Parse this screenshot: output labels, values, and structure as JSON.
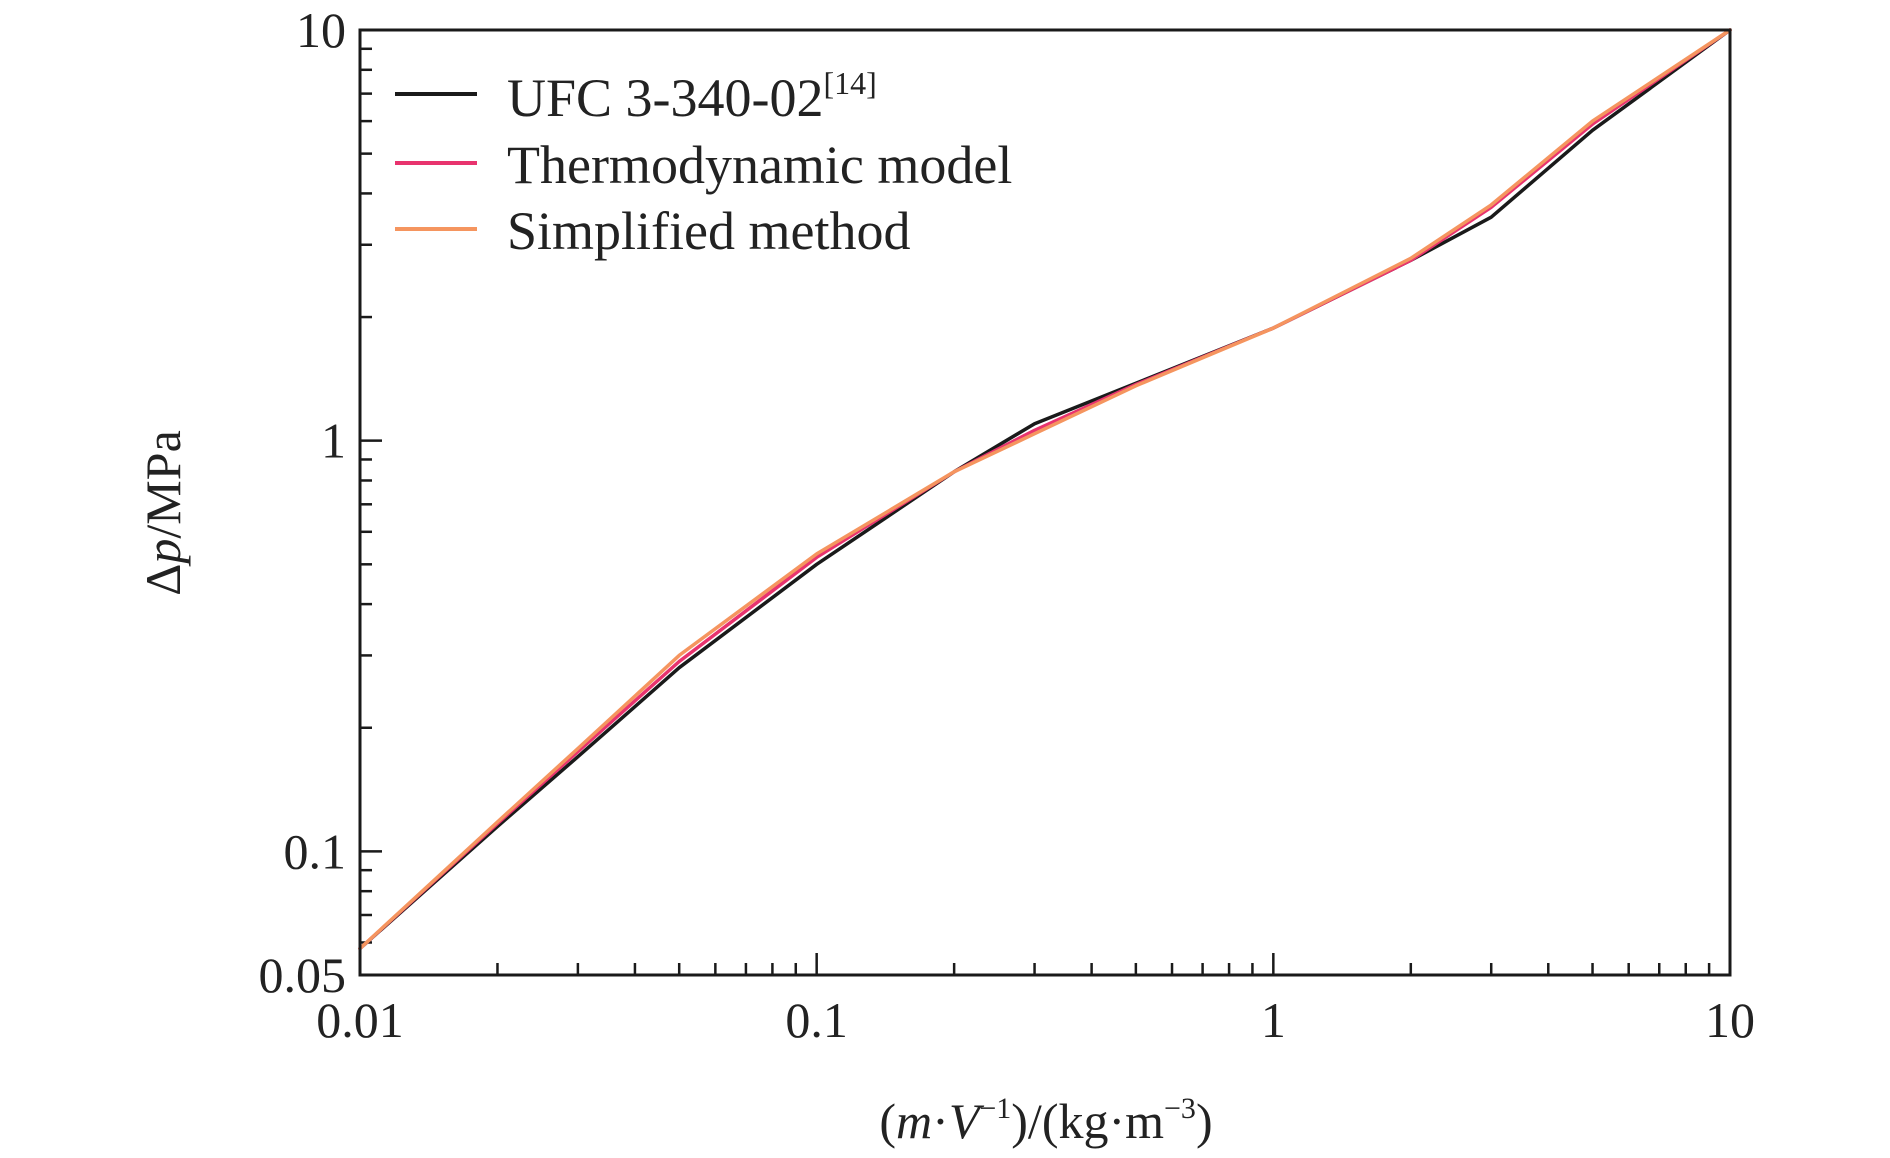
{
  "chart_data": {
    "type": "line",
    "title": "",
    "xlabel": {
      "paren_open": "(",
      "m": "m",
      "dot1": "·",
      "V": "V",
      "exp1": "−1",
      "mid": ")/(kg·m",
      "exp2": "−3",
      "paren_close": ")"
    },
    "ylabel": {
      "delta": "Δ",
      "p": "p",
      "unit": "/MPa"
    },
    "x_scale": "log",
    "y_scale": "log",
    "xlim": [
      0.01,
      10
    ],
    "ylim": [
      0.05,
      10
    ],
    "x_ticks": [
      {
        "value": 0.01,
        "label": "0.01"
      },
      {
        "value": 0.1,
        "label": "0.1"
      },
      {
        "value": 1,
        "label": "1"
      },
      {
        "value": 10,
        "label": "10"
      }
    ],
    "y_ticks": [
      {
        "value": 0.05,
        "label": "0.05"
      },
      {
        "value": 0.1,
        "label": "0.1"
      },
      {
        "value": 1,
        "label": "1"
      },
      {
        "value": 10,
        "label": "10"
      }
    ],
    "grid": false,
    "legend_position": "top-left",
    "series": [
      {
        "name": "UFC 3-340-02",
        "name_ref": "[14]",
        "color": "#1a1a1a",
        "x": [
          0.01,
          0.02,
          0.03,
          0.05,
          0.1,
          0.2,
          0.3,
          0.5,
          1,
          2,
          3,
          5,
          10
        ],
        "y": [
          0.058,
          0.115,
          0.17,
          0.28,
          0.5,
          0.84,
          1.1,
          1.38,
          1.88,
          2.75,
          3.5,
          5.7,
          10
        ]
      },
      {
        "name": "Thermodynamic model",
        "color": "#e8336e",
        "x": [
          0.01,
          0.02,
          0.03,
          0.05,
          0.1,
          0.2,
          0.3,
          0.5,
          1,
          2,
          3,
          5,
          10
        ],
        "y": [
          0.058,
          0.117,
          0.175,
          0.29,
          0.52,
          0.84,
          1.06,
          1.37,
          1.88,
          2.75,
          3.7,
          5.9,
          10
        ]
      },
      {
        "name": "Simplified method",
        "color": "#f5955f",
        "x": [
          0.01,
          0.02,
          0.03,
          0.05,
          0.1,
          0.2,
          0.3,
          0.5,
          1,
          2,
          3,
          5,
          10
        ],
        "y": [
          0.058,
          0.118,
          0.178,
          0.3,
          0.53,
          0.84,
          1.04,
          1.36,
          1.88,
          2.78,
          3.75,
          6.0,
          10
        ]
      }
    ]
  }
}
